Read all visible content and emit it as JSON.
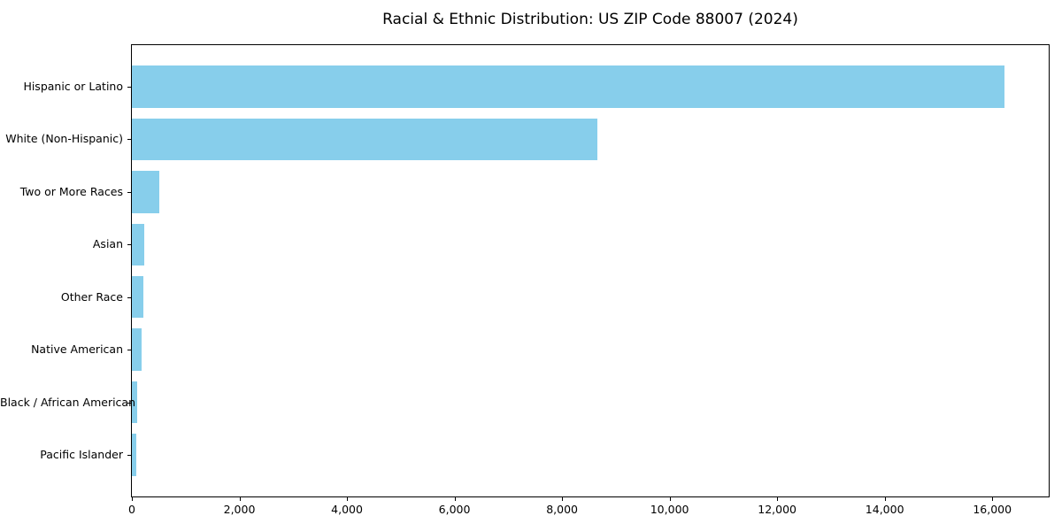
{
  "title": "Racial & Ethnic Distribution: US ZIP Code 88007 (2024)",
  "chart_data": {
    "type": "bar",
    "orientation": "horizontal",
    "title": "Racial & Ethnic Distribution: US ZIP Code 88007 (2024)",
    "categories": [
      "Hispanic or Latino",
      "White (Non-Hispanic)",
      "Two or More Races",
      "Asian",
      "Other Race",
      "Native American",
      "Black / African American",
      "Pacific Islander"
    ],
    "values": [
      16230,
      8650,
      515,
      230,
      215,
      175,
      105,
      80
    ],
    "xlabel": "",
    "ylabel": "",
    "xlim": [
      0,
      17050
    ],
    "x_ticks": [
      0,
      2000,
      4000,
      6000,
      8000,
      10000,
      12000,
      14000,
      16000
    ],
    "x_tick_labels": [
      "0",
      "2,000",
      "4,000",
      "6,000",
      "8,000",
      "10,000",
      "12,000",
      "14,000",
      "16,000"
    ],
    "bar_color": "#87CEEB",
    "text_color": "#000000",
    "frame_color": "#000000",
    "grid": false,
    "legend": null
  }
}
